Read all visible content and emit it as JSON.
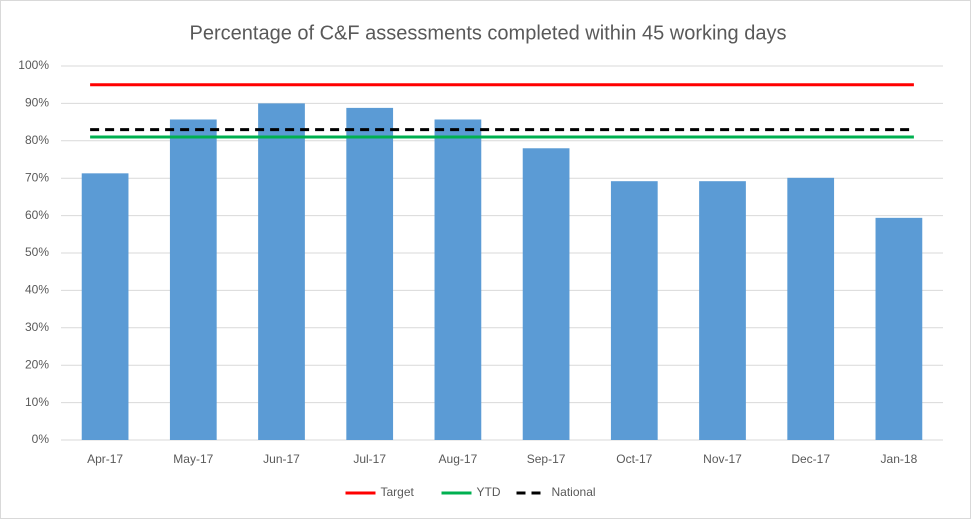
{
  "chart_data": {
    "type": "bar",
    "title": "Percentage of C&F assessments completed within 45 working days",
    "categories": [
      "Apr-17",
      "May-17",
      "Jun-17",
      "Jul-17",
      "Aug-17",
      "Sep-17",
      "Oct-17",
      "Nov-17",
      "Dec-17",
      "Jan-18"
    ],
    "values": [
      71.3,
      85.7,
      90,
      88.8,
      85.7,
      78,
      69.2,
      69.2,
      70.1,
      59.4
    ],
    "color": "#5b9bd5",
    "series": [
      {
        "name": "Target",
        "color": "#ff0000",
        "values": [
          95,
          95,
          95,
          95,
          95,
          95,
          95,
          95,
          95,
          95
        ]
      },
      {
        "name": "YTD",
        "color": "#00b050",
        "values": [
          81,
          81,
          81,
          81,
          81,
          81,
          81,
          81,
          81,
          81
        ]
      },
      {
        "name": "National",
        "color": "#000000",
        "dashed": true,
        "values": [
          83,
          83,
          83,
          83,
          83,
          83,
          83,
          83,
          83,
          83
        ]
      }
    ],
    "ylim": [
      0,
      100
    ],
    "yticks": [
      {
        "value": 0,
        "label": "0%"
      },
      {
        "value": 10,
        "label": "10%"
      },
      {
        "value": 20,
        "label": "20%"
      },
      {
        "value": 30,
        "label": "30%"
      },
      {
        "value": 40,
        "label": "40%"
      },
      {
        "value": 50,
        "label": "50%"
      },
      {
        "value": 60,
        "label": "60%"
      },
      {
        "value": 70,
        "label": "70%"
      },
      {
        "value": 80,
        "label": "80%"
      },
      {
        "value": 90,
        "label": "90%"
      },
      {
        "value": 100,
        "label": "100%"
      }
    ],
    "grid": true,
    "legend": "bottom"
  }
}
